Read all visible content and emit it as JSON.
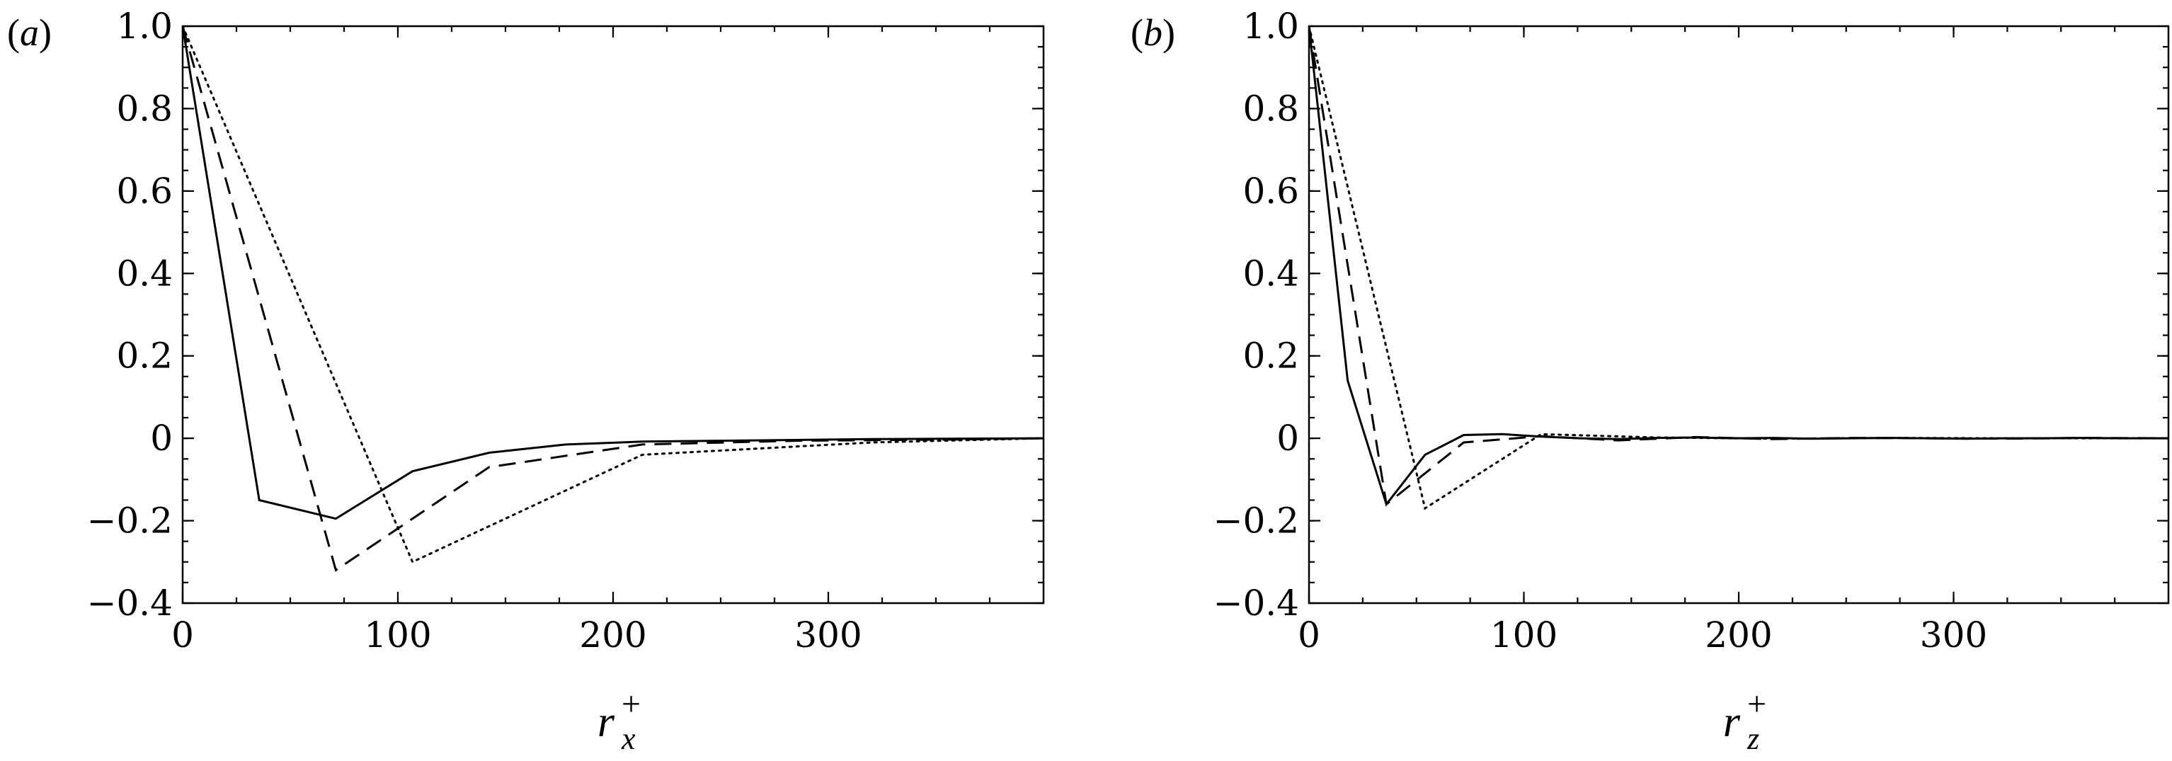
{
  "chart_data": [
    {
      "type": "line",
      "panel_label": "a",
      "xlabel": "r",
      "xlabel_sub": "x",
      "xlabel_sup": "+",
      "ylabel": "",
      "xlim": [
        0,
        400
      ],
      "ylim": [
        -0.4,
        1.0
      ],
      "xticks": [
        0,
        100,
        200,
        300
      ],
      "xtick_labels": [
        "0",
        "100",
        "200",
        "300"
      ],
      "yticks": [
        -0.4,
        -0.2,
        0,
        0.2,
        0.4,
        0.6,
        0.8,
        1.0
      ],
      "ytick_labels": [
        "−0.4",
        "−0.2",
        "0",
        "0.2",
        "0.4",
        "0.6",
        "0.8",
        "1.0"
      ],
      "grid": false,
      "series": [
        {
          "style": "solid",
          "x": [
            0,
            35.6,
            71.2,
            106.8,
            142.4,
            178,
            213.6,
            249.2,
            284.8,
            320.4,
            356,
            400
          ],
          "y": [
            1.0,
            -0.15,
            -0.195,
            -0.08,
            -0.035,
            -0.015,
            -0.008,
            -0.006,
            -0.004,
            -0.002,
            -0.001,
            0.0
          ]
        },
        {
          "style": "dashed",
          "x": [
            0,
            71.2,
            142.4,
            213.6,
            284.8,
            356,
            400
          ],
          "y": [
            1.0,
            -0.32,
            -0.07,
            -0.015,
            -0.006,
            -0.003,
            0.0
          ]
        },
        {
          "style": "dotted",
          "x": [
            0,
            106.8,
            213.6,
            320.4,
            400
          ],
          "y": [
            1.0,
            -0.3,
            -0.04,
            -0.01,
            0.0
          ]
        }
      ]
    },
    {
      "type": "line",
      "panel_label": "b",
      "xlabel": "r",
      "xlabel_sub": "z",
      "xlabel_sup": "+",
      "ylabel": "",
      "xlim": [
        0,
        400
      ],
      "ylim": [
        -0.4,
        1.0
      ],
      "xticks": [
        0,
        100,
        200,
        300
      ],
      "xtick_labels": [
        "0",
        "100",
        "200",
        "300"
      ],
      "yticks": [
        -0.4,
        -0.2,
        0,
        0.2,
        0.4,
        0.6,
        0.8,
        1.0
      ],
      "ytick_labels": [
        "−0.4",
        "−0.2",
        "0",
        "0.2",
        "0.4",
        "0.6",
        "0.8",
        "1.0"
      ],
      "grid": false,
      "series": [
        {
          "style": "solid",
          "x": [
            0,
            18,
            36,
            54,
            72,
            90,
            108,
            126,
            144,
            162,
            180,
            198,
            216,
            234,
            252,
            270,
            288,
            306,
            324,
            342,
            360,
            378,
            400
          ],
          "y": [
            1.0,
            0.14,
            -0.16,
            -0.04,
            0.008,
            0.01,
            0.004,
            0.0,
            -0.002,
            0.001,
            0.002,
            0.0,
            0.001,
            -0.001,
            0.0,
            0.001,
            0.0,
            -0.001,
            0.0,
            0.0,
            0.001,
            0.0,
            0.0
          ]
        },
        {
          "style": "dashed",
          "x": [
            0,
            36,
            72,
            108,
            144,
            180,
            216,
            252,
            288,
            324,
            360,
            400
          ],
          "y": [
            1.0,
            -0.16,
            -0.01,
            0.005,
            -0.005,
            0.003,
            -0.002,
            0.001,
            0.0,
            -0.001,
            0.001,
            0.0
          ]
        },
        {
          "style": "dotted",
          "x": [
            0,
            54,
            108,
            162,
            216,
            270,
            324,
            400
          ],
          "y": [
            1.0,
            -0.17,
            0.01,
            0.002,
            -0.001,
            0.001,
            0.0,
            0.0
          ]
        }
      ]
    }
  ]
}
